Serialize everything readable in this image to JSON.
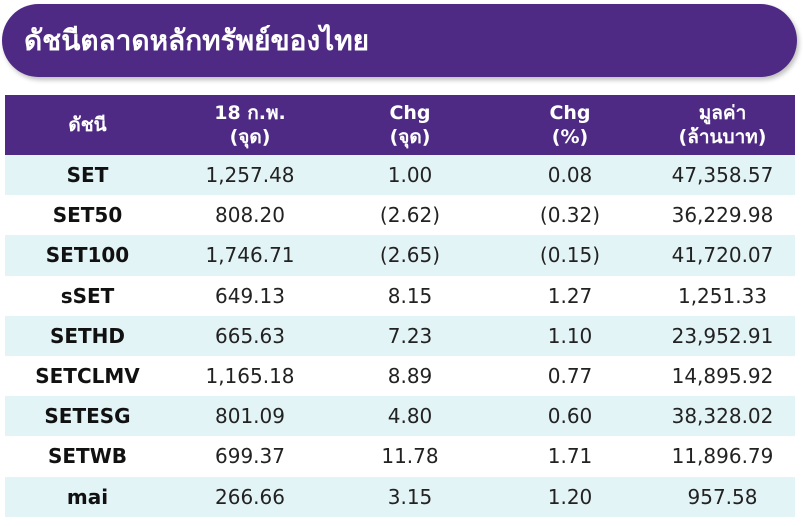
{
  "title": "ดัชนีตลาดหลักทรัพย์ของไทย",
  "colors": {
    "brand_purple": "#4e2a84",
    "row_stripe": "#e3f4f7",
    "header_text": "#ffffff"
  },
  "table": {
    "headers": [
      {
        "line1": "ดัชนี",
        "line2": ""
      },
      {
        "line1": "18 ก.พ.",
        "line2": "(จุด)"
      },
      {
        "line1": "Chg",
        "line2": "(จุด)"
      },
      {
        "line1": "Chg",
        "line2": "(%)"
      },
      {
        "line1": "มูลค่า",
        "line2": "(ล้านบาท)"
      }
    ],
    "rows": [
      [
        "SET",
        "1,257.48",
        "1.00",
        "0.08",
        "47,358.57"
      ],
      [
        "SET50",
        "808.20",
        "(2.62)",
        "(0.32)",
        "36,229.98"
      ],
      [
        "SET100",
        "1,746.71",
        "(2.65)",
        "(0.15)",
        "41,720.07"
      ],
      [
        "sSET",
        "649.13",
        "8.15",
        "1.27",
        "1,251.33"
      ],
      [
        "SETHD",
        "665.63",
        "7.23",
        "1.10",
        "23,952.91"
      ],
      [
        "SETCLMV",
        "1,165.18",
        "8.89",
        "0.77",
        "14,895.92"
      ],
      [
        "SETESG",
        "801.09",
        "4.80",
        "0.60",
        "38,328.02"
      ],
      [
        "SETWB",
        "699.37",
        "11.78",
        "1.71",
        "11,896.79"
      ],
      [
        "mai",
        "266.66",
        "3.15",
        "1.20",
        "957.58"
      ]
    ]
  }
}
